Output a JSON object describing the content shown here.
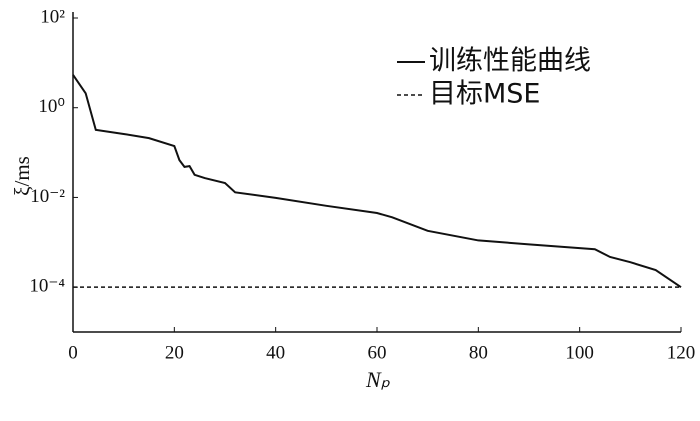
{
  "chart_data": {
    "type": "line",
    "xlabel": "Nₚ",
    "ylabel": "ξ/ms",
    "log_y": true,
    "xlim": [
      0,
      120
    ],
    "xticks": [
      0,
      20,
      40,
      60,
      80,
      100,
      120
    ],
    "ylim": [
      1e-05,
      100
    ],
    "yticks": [
      {
        "value": 100,
        "label": "10²"
      },
      {
        "value": 1,
        "label": "10⁰"
      },
      {
        "value": 0.01,
        "label": "10⁻²"
      },
      {
        "value": 0.0001,
        "label": "10⁻⁴"
      }
    ],
    "legend": "upper right",
    "series": [
      {
        "name": "训练性能曲线",
        "color": "#111111",
        "dash": "solid",
        "x": [
          0,
          2.5,
          4.5,
          10,
          15,
          20,
          21,
          22,
          23,
          24,
          26,
          30,
          32,
          40,
          50,
          60,
          63,
          70,
          80,
          90,
          100,
          103,
          106,
          110,
          115,
          120
        ],
        "values": [
          5.4,
          2.1,
          0.32,
          0.26,
          0.21,
          0.14,
          0.068,
          0.048,
          0.05,
          0.032,
          0.027,
          0.021,
          0.013,
          0.0098,
          0.0065,
          0.0045,
          0.0036,
          0.0018,
          0.0011,
          0.0009,
          0.00074,
          0.0007,
          0.00047,
          0.00036,
          0.00024,
          0.0001
        ]
      },
      {
        "name": "目标MSE",
        "color": "#111111",
        "dash": "dashed",
        "x": [
          0,
          120
        ],
        "values": [
          0.0001,
          0.0001
        ]
      }
    ]
  }
}
